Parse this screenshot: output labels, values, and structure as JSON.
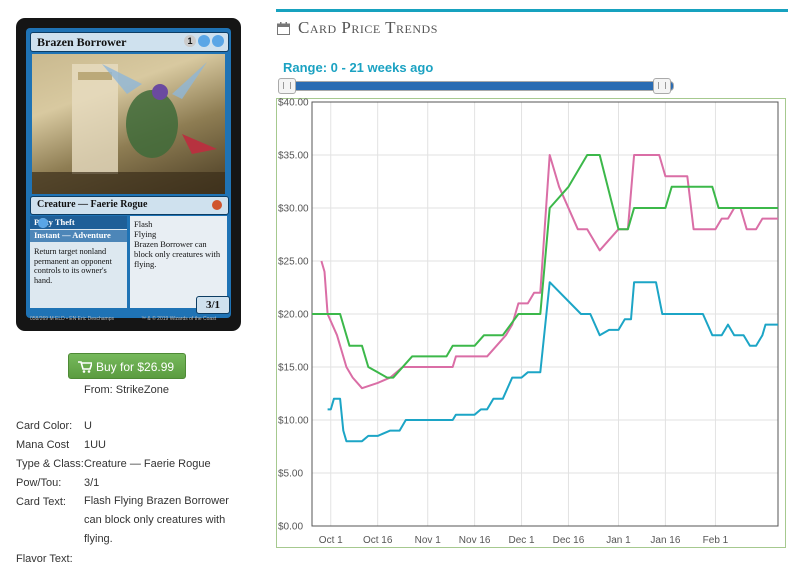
{
  "card": {
    "name": "Brazen Borrower",
    "mana_cost_pips": [
      "1",
      "U",
      "U"
    ],
    "type_line": "Creature — Faerie Rogue",
    "adventure_name": "Petty Theft",
    "adventure_mana_pips": [
      "1",
      "U"
    ],
    "adventure_type": "Instant — Adventure",
    "adventure_text": "Return target nonland permanent an opponent controls to its owner's hand.",
    "rules_line1": "Flash",
    "rules_line2": "Flying",
    "rules_line3": "Brazen Borrower can block only creatures with flying.",
    "pt": "3/1",
    "footer_left": "058/269 M  ELD • EN  Eric Deschamps",
    "footer_right": "™ & © 2019 Wizards of the Coast",
    "colors": {
      "frame": "#1f73b5",
      "border": "#151515"
    }
  },
  "buy": {
    "label": "Buy for $26.99",
    "cart_icon": "cart-icon",
    "color": "#5fa044"
  },
  "from_label": "From: StrikeZone",
  "info": [
    {
      "key": "Card Color:",
      "value": "U"
    },
    {
      "key": "Mana Cost",
      "value": "1UU"
    },
    {
      "key": "Type & Class:",
      "value": "Creature — Faerie Rogue"
    },
    {
      "key": "Pow/Tou:",
      "value": "3/1"
    },
    {
      "key": "Card Text:",
      "value": "Flash Flying Brazen Borrower can block only creatures with flying."
    },
    {
      "key": "Flavor Text:",
      "value": ""
    }
  ],
  "panel": {
    "title": "Card Price Trends",
    "icon": "calendar-icon",
    "range_label": "Range: 0 - 21 weeks ago",
    "accent": "#17a2bf"
  },
  "chart_data": {
    "type": "line",
    "title": "",
    "xlabel": "",
    "ylabel": "",
    "x_ticks": [
      "Oct 1",
      "Oct 16",
      "Nov 1",
      "Nov 16",
      "Dec 1",
      "Dec 16",
      "Jan 1",
      "Jan 16",
      "Feb 1"
    ],
    "y_ticks": [
      "$0.00",
      "$5.00",
      "$10.00",
      "$15.00",
      "$20.00",
      "$25.00",
      "$30.00",
      "$35.00",
      "$40.00"
    ],
    "ylim": [
      0,
      40
    ],
    "grid": true,
    "legend": "none",
    "series": [
      {
        "color": "#da6ea6",
        "points": [
          [
            "Sep 28",
            25.0
          ],
          [
            "Sep 29",
            24.0
          ],
          [
            "Sep 30",
            20.0
          ],
          [
            "Oct 3",
            18.0
          ],
          [
            "Oct 6",
            15.0
          ],
          [
            "Oct 8",
            14.0
          ],
          [
            "Oct 11",
            13.0
          ],
          [
            "Oct 16",
            13.5
          ],
          [
            "Oct 20",
            14.0
          ],
          [
            "Oct 24",
            15.0
          ],
          [
            "Nov 5",
            15.0
          ],
          [
            "Nov 9",
            15.0
          ],
          [
            "Nov 10",
            16.0
          ],
          [
            "Nov 20",
            16.0
          ],
          [
            "Nov 23",
            17.0
          ],
          [
            "Nov 26",
            18.0
          ],
          [
            "Nov 28",
            19.0
          ],
          [
            "Nov 30",
            21.0
          ],
          [
            "Dec 3",
            21.0
          ],
          [
            "Dec 5",
            22.0
          ],
          [
            "Dec 7",
            22.0
          ],
          [
            "Dec 10",
            35.0
          ],
          [
            "Dec 13",
            32.0
          ],
          [
            "Dec 19",
            28.0
          ],
          [
            "Dec 22",
            28.0
          ],
          [
            "Dec 26",
            26.0
          ],
          [
            "Dec 29",
            27.0
          ],
          [
            "Jan 1",
            28.0
          ],
          [
            "Jan 4",
            28.0
          ],
          [
            "Jan 6",
            35.0
          ],
          [
            "Jan 14",
            35.0
          ],
          [
            "Jan 16",
            33.0
          ],
          [
            "Jan 23",
            33.0
          ],
          [
            "Jan 25",
            28.0
          ],
          [
            "Feb 1",
            28.0
          ],
          [
            "Feb 3",
            29.0
          ],
          [
            "Feb 5",
            29.0
          ],
          [
            "Feb 7",
            30.0
          ],
          [
            "Feb 9",
            30.0
          ],
          [
            "Feb 11",
            28.0
          ],
          [
            "Feb 14",
            28.0
          ],
          [
            "Feb 16",
            29.0
          ],
          [
            "Feb 21",
            29.0
          ]
        ]
      },
      {
        "color": "#3cb84a",
        "points": [
          [
            "Sep 25",
            20.0
          ],
          [
            "Oct 4",
            20.0
          ],
          [
            "Oct 7",
            17.0
          ],
          [
            "Oct 11",
            17.0
          ],
          [
            "Oct 13",
            15.0
          ],
          [
            "Oct 16",
            14.5
          ],
          [
            "Oct 19",
            14.0
          ],
          [
            "Oct 21",
            14.0
          ],
          [
            "Oct 27",
            16.0
          ],
          [
            "Nov 7",
            16.0
          ],
          [
            "Nov 9",
            17.0
          ],
          [
            "Nov 16",
            17.0
          ],
          [
            "Nov 19",
            18.0
          ],
          [
            "Nov 25",
            18.0
          ],
          [
            "Nov 30",
            20.0
          ],
          [
            "Dec 5",
            20.0
          ],
          [
            "Dec 7",
            20.0
          ],
          [
            "Dec 10",
            30.0
          ],
          [
            "Dec 16",
            32.0
          ],
          [
            "Dec 22",
            35.0
          ],
          [
            "Dec 26",
            35.0
          ],
          [
            "Jan 1",
            28.0
          ],
          [
            "Jan 4",
            28.0
          ],
          [
            "Jan 6",
            30.0
          ],
          [
            "Jan 16",
            30.0
          ],
          [
            "Jan 18",
            32.0
          ],
          [
            "Jan 31",
            32.0
          ],
          [
            "Feb 2",
            30.0
          ],
          [
            "Feb 21",
            30.0
          ]
        ]
      },
      {
        "color": "#1ca5c6",
        "points": [
          [
            "Sep 30",
            11.0
          ],
          [
            "Oct 1",
            11.0
          ],
          [
            "Oct 2",
            12.0
          ],
          [
            "Oct 4",
            12.0
          ],
          [
            "Oct 5",
            9.0
          ],
          [
            "Oct 6",
            8.0
          ],
          [
            "Oct 11",
            8.0
          ],
          [
            "Oct 13",
            8.5
          ],
          [
            "Oct 16",
            8.5
          ],
          [
            "Oct 20",
            9.0
          ],
          [
            "Oct 23",
            9.0
          ],
          [
            "Oct 25",
            10.0
          ],
          [
            "Nov 2",
            10.0
          ],
          [
            "Nov 5",
            10.0
          ],
          [
            "Nov 9",
            10.0
          ],
          [
            "Nov 10",
            10.5
          ],
          [
            "Nov 16",
            10.5
          ],
          [
            "Nov 18",
            11.0
          ],
          [
            "Nov 20",
            11.0
          ],
          [
            "Nov 22",
            12.0
          ],
          [
            "Nov 25",
            12.0
          ],
          [
            "Nov 28",
            14.0
          ],
          [
            "Dec 1",
            14.0
          ],
          [
            "Dec 3",
            14.5
          ],
          [
            "Dec 7",
            14.5
          ],
          [
            "Dec 10",
            23.0
          ],
          [
            "Dec 20",
            20.0
          ],
          [
            "Dec 23",
            20.0
          ],
          [
            "Dec 26",
            18.0
          ],
          [
            "Dec 29",
            18.5
          ],
          [
            "Jan 1",
            18.5
          ],
          [
            "Jan 3",
            19.5
          ],
          [
            "Jan 5",
            19.5
          ],
          [
            "Jan 6",
            23.0
          ],
          [
            "Jan 13",
            23.0
          ],
          [
            "Jan 15",
            20.0
          ],
          [
            "Jan 28",
            20.0
          ],
          [
            "Jan 31",
            18.0
          ],
          [
            "Feb 3",
            18.0
          ],
          [
            "Feb 5",
            19.0
          ],
          [
            "Feb 7",
            18.0
          ],
          [
            "Feb 10",
            18.0
          ],
          [
            "Feb 12",
            17.0
          ],
          [
            "Feb 14",
            17.0
          ],
          [
            "Feb 16",
            18.0
          ],
          [
            "Feb 17",
            19.0
          ],
          [
            "Feb 21",
            19.0
          ]
        ]
      }
    ]
  }
}
